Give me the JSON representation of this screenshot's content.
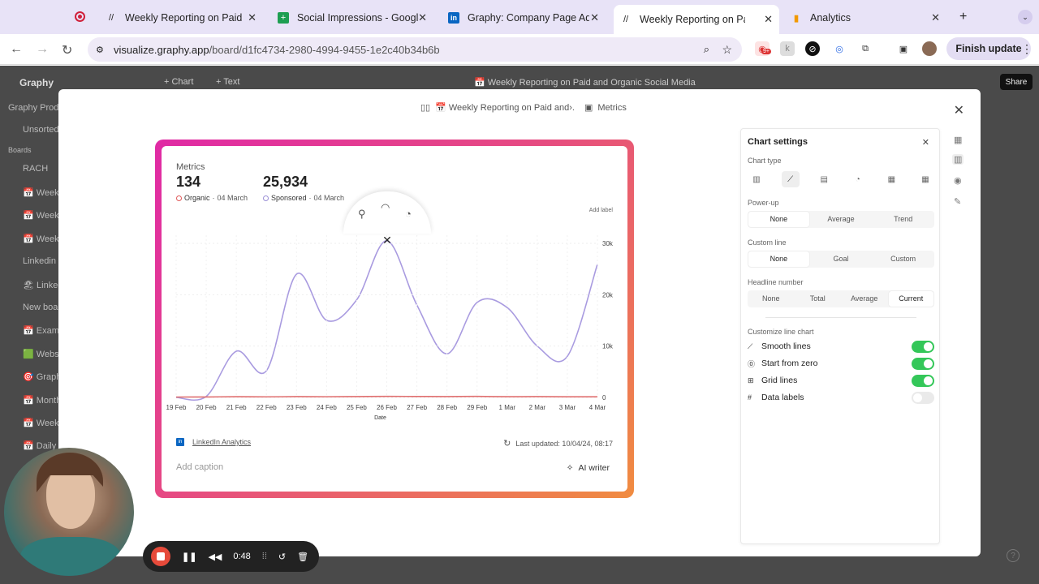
{
  "browser": {
    "tabs": [
      {
        "title": "Weekly Reporting on Paid",
        "icon": "graphy-logo-icon",
        "active": false
      },
      {
        "title": "Social Impressions - Google S",
        "icon": "google-sheets-icon",
        "active": false
      },
      {
        "title": "Graphy: Company Page Admi",
        "icon": "linkedin-icon",
        "active": false
      },
      {
        "title": "Weekly Reporting on Paid",
        "icon": "graphy-logo-icon",
        "active": true
      },
      {
        "title": "Analytics",
        "icon": "analytics-icon",
        "active": false
      }
    ],
    "url_host": "visualize.graphy.app",
    "url_path": "/board/d1fc4734-2980-4994-9455-1e2c40b34b6b",
    "finish_update": "Finish update",
    "ext_badge": "9+"
  },
  "app": {
    "logo": "Graphy",
    "top_actions": [
      "+ Chart",
      "+ Text"
    ],
    "board_title": "📅 Weekly Reporting on Paid and Organic Social Media",
    "share": "Share",
    "sidebar": [
      "Graphy Prod",
      "Unsorted",
      "Boards",
      "RACH",
      "📅 Weekl",
      "📅 Weekl",
      "📅 Weekl",
      "Linkedin",
      "🏖 Linked",
      "New boa",
      "📅 Examp",
      "🟩 Websi",
      "🎯 Graph",
      "📅 Month",
      "📅 Weekl",
      "📅 Daily"
    ]
  },
  "modal": {
    "breadcrumb_board": "📅 Weekly Reporting on Paid and›.",
    "breadcrumb_chart": "Metrics"
  },
  "card": {
    "title": "Metrics",
    "headline": [
      {
        "value": "134",
        "series": "Organic",
        "date": "04 March",
        "color": "#e05a5a"
      },
      {
        "value": "25,934",
        "series": "Sponsored",
        "date": "04 March",
        "color": "#9b8fd6"
      }
    ],
    "add_label": "Add label",
    "source": "LinkedIn Analytics",
    "updated": "Last updated: 10/04/24, 08:17",
    "caption_placeholder": "Add caption",
    "ai_writer": "AI writer"
  },
  "chart_data": {
    "type": "line",
    "x": [
      "19 Feb",
      "20 Feb",
      "21 Feb",
      "22 Feb",
      "23 Feb",
      "24 Feb",
      "25 Feb",
      "26 Feb",
      "27 Feb",
      "28 Feb",
      "29 Feb",
      "1 Mar",
      "2 Mar",
      "3 Mar",
      "4 Mar"
    ],
    "xlabel": "Date",
    "ylim": [
      0,
      30000
    ],
    "yticks": [
      0,
      10000,
      20000,
      30000
    ],
    "ytick_labels": [
      "0",
      "10k",
      "20k",
      "30k"
    ],
    "series": [
      {
        "name": "Organic",
        "color": "#e07070",
        "values": [
          80,
          90,
          150,
          120,
          160,
          140,
          170,
          210,
          190,
          170,
          200,
          150,
          160,
          130,
          134
        ]
      },
      {
        "name": "Sponsored",
        "color": "#a99be0",
        "values": [
          0,
          200,
          9000,
          5200,
          24000,
          15000,
          19000,
          30500,
          18000,
          8500,
          18500,
          17500,
          10000,
          8000,
          25934
        ]
      }
    ],
    "grid": true
  },
  "settings": {
    "title": "Chart settings",
    "chart_type_label": "Chart type",
    "power_up_label": "Power-up",
    "power_up": [
      "None",
      "Average",
      "Trend"
    ],
    "custom_line_label": "Custom line",
    "custom_line": [
      "None",
      "Goal",
      "Custom"
    ],
    "headline_label": "Headline number",
    "headline": [
      "None",
      "Total",
      "Average",
      "Current"
    ],
    "customize_label": "Customize line chart",
    "toggles": [
      {
        "label": "Smooth lines",
        "on": true,
        "icon": "smooth-icon"
      },
      {
        "label": "Start from zero",
        "on": true,
        "icon": "zero-icon"
      },
      {
        "label": "Grid lines",
        "on": true,
        "icon": "grid-icon"
      },
      {
        "label": "Data labels",
        "on": false,
        "icon": "hash-icon"
      }
    ]
  },
  "recorder": {
    "time": "0:48"
  }
}
